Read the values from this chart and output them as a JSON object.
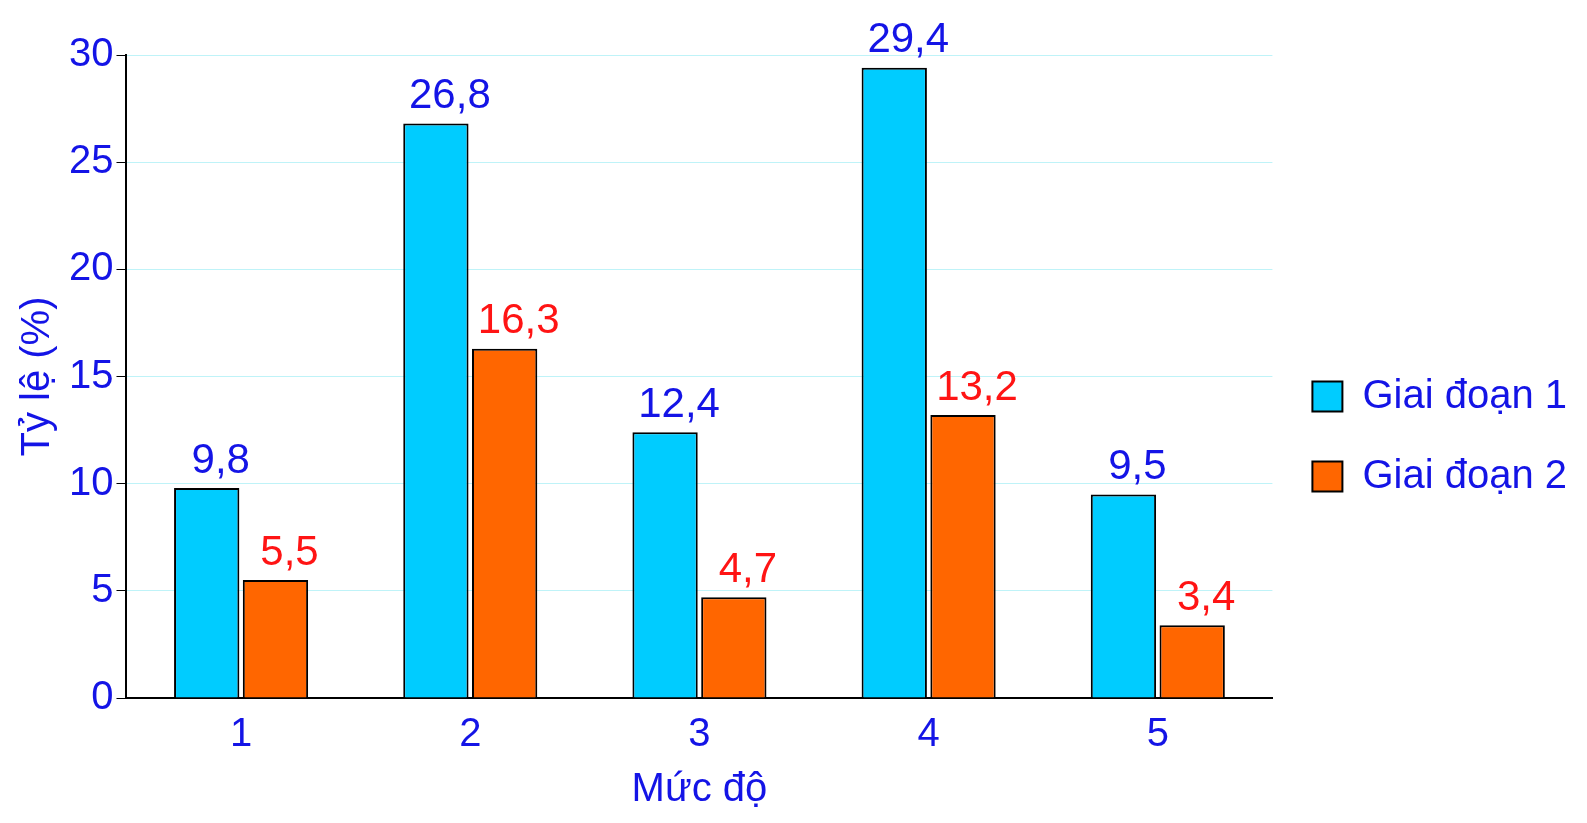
{
  "chart_data": {
    "type": "bar",
    "xlabel": "Mức độ",
    "ylabel": "Tỷ lệ (%)",
    "categories": [
      "1",
      "2",
      "3",
      "4",
      "5"
    ],
    "series": [
      {
        "name": "Giai đoạn 1",
        "color": "#00ccff",
        "values": [
          9.8,
          26.8,
          12.4,
          29.4,
          9.5
        ],
        "value_labels": [
          "9,8",
          "26,8",
          "12,4",
          "29,4",
          "9,5"
        ]
      },
      {
        "name": "Giai đoạn 2",
        "color": "#ff6600",
        "values": [
          5.5,
          16.3,
          4.7,
          13.2,
          3.4
        ],
        "value_labels": [
          "5,5",
          "16,3",
          "4,7",
          "13,2",
          "3,4"
        ]
      }
    ],
    "ylim": [
      0,
      30
    ],
    "yticks": [
      0,
      5,
      10,
      15,
      20,
      25,
      30
    ],
    "grid": "y",
    "legend": "right"
  }
}
